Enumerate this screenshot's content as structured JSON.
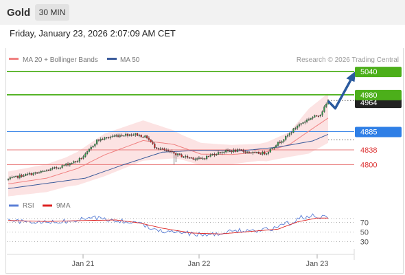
{
  "header": {
    "instrument": "Gold",
    "timeframe": "30 MIN",
    "timestamp": "Friday, January 23, 2026 2:07:09 AM CET"
  },
  "legend": {
    "ma20": "MA 20 + Bollinger Bands",
    "ma50": "MA 50",
    "credit": "Research © 2026 Trading Central",
    "rsi": "RSI",
    "rsi_ma": "9MA"
  },
  "colors": {
    "bull": "#2e9d4a",
    "bear": "#cc2222",
    "ma20": "#f08080",
    "ma50": "#3a5a9a",
    "band_fill": "#fbdada",
    "resistance": "#4caf1a",
    "pivot": "#2f7fe6",
    "support": "#e87878",
    "arrow": "#2a5a9e",
    "rsi_line": "#5b7fd6",
    "rsi_ma_line": "#dd2222"
  },
  "chart_data": [
    {
      "type": "candlestick",
      "title": "Gold",
      "timeframe": "30 MIN",
      "ylim": [
        4735,
        5065
      ],
      "x_ticks": [
        "Jan 21",
        "Jan 22",
        "Jan 23"
      ],
      "levels": [
        {
          "label": "5040",
          "value": 5040,
          "kind": "resistance"
        },
        {
          "label": "4980",
          "value": 4980,
          "kind": "resistance"
        },
        {
          "label": "4885",
          "value": 4885,
          "kind": "pivot"
        },
        {
          "label": "4838",
          "value": 4838,
          "kind": "support"
        },
        {
          "label": "4800",
          "value": 4800,
          "kind": "support"
        }
      ],
      "current_price_label": "4964",
      "close_anchors": [
        [
          0,
          4762
        ],
        [
          8,
          4773
        ],
        [
          16,
          4779
        ],
        [
          26,
          4793
        ],
        [
          36,
          4810
        ],
        [
          40,
          4825
        ],
        [
          46,
          4862
        ],
        [
          54,
          4873
        ],
        [
          60,
          4877
        ],
        [
          66,
          4878
        ],
        [
          72,
          4870
        ],
        [
          76,
          4846
        ],
        [
          82,
          4835
        ],
        [
          90,
          4822
        ],
        [
          94,
          4818
        ],
        [
          100,
          4814
        ],
        [
          106,
          4826
        ],
        [
          112,
          4834
        ],
        [
          120,
          4836
        ],
        [
          128,
          4829
        ],
        [
          134,
          4830
        ],
        [
          138,
          4848
        ],
        [
          144,
          4870
        ],
        [
          150,
          4900
        ],
        [
          156,
          4918
        ],
        [
          162,
          4930
        ],
        [
          166,
          4964
        ]
      ],
      "ma20_anchors": [
        [
          0,
          4750
        ],
        [
          20,
          4765
        ],
        [
          36,
          4790
        ],
        [
          50,
          4825
        ],
        [
          70,
          4862
        ],
        [
          86,
          4852
        ],
        [
          100,
          4827
        ],
        [
          116,
          4826
        ],
        [
          134,
          4833
        ],
        [
          146,
          4852
        ],
        [
          158,
          4893
        ],
        [
          166,
          4920
        ]
      ],
      "ma50_anchors": [
        [
          0,
          4738
        ],
        [
          40,
          4765
        ],
        [
          60,
          4800
        ],
        [
          80,
          4832
        ],
        [
          100,
          4837
        ],
        [
          120,
          4835
        ],
        [
          140,
          4845
        ],
        [
          158,
          4861
        ],
        [
          166,
          4878
        ]
      ],
      "band_width_anchors": [
        [
          0,
          32
        ],
        [
          30,
          38
        ],
        [
          50,
          55
        ],
        [
          70,
          52
        ],
        [
          90,
          32
        ],
        [
          110,
          26
        ],
        [
          130,
          22
        ],
        [
          146,
          32
        ],
        [
          156,
          58
        ],
        [
          166,
          64
        ]
      ],
      "forecast": [
        [
          166,
          4964
        ],
        [
          170,
          4945
        ],
        [
          180,
          5040
        ]
      ]
    },
    {
      "type": "line",
      "title": "RSI",
      "ylim": [
        15,
        95
      ],
      "y_ticks": [
        70,
        50,
        30
      ],
      "series": [
        {
          "name": "RSI",
          "anchors": [
            [
              0,
              74
            ],
            [
              15,
              69
            ],
            [
              30,
              72
            ],
            [
              45,
              79
            ],
            [
              55,
              74
            ],
            [
              65,
              70
            ],
            [
              72,
              63
            ],
            [
              80,
              53
            ],
            [
              90,
              49
            ],
            [
              100,
              44
            ],
            [
              110,
              46
            ],
            [
              120,
              54
            ],
            [
              130,
              51
            ],
            [
              140,
              60
            ],
            [
              146,
              69
            ],
            [
              152,
              80
            ],
            [
              158,
              83
            ],
            [
              166,
              81
            ]
          ]
        },
        {
          "name": "9MA",
          "anchors": [
            [
              0,
              74
            ],
            [
              20,
              72
            ],
            [
              40,
              74
            ],
            [
              56,
              75
            ],
            [
              68,
              69
            ],
            [
              80,
              58
            ],
            [
              95,
              48
            ],
            [
              110,
              46
            ],
            [
              125,
              51
            ],
            [
              140,
              56
            ],
            [
              150,
              71
            ],
            [
              160,
              79
            ],
            [
              166,
              79
            ]
          ]
        }
      ]
    }
  ]
}
